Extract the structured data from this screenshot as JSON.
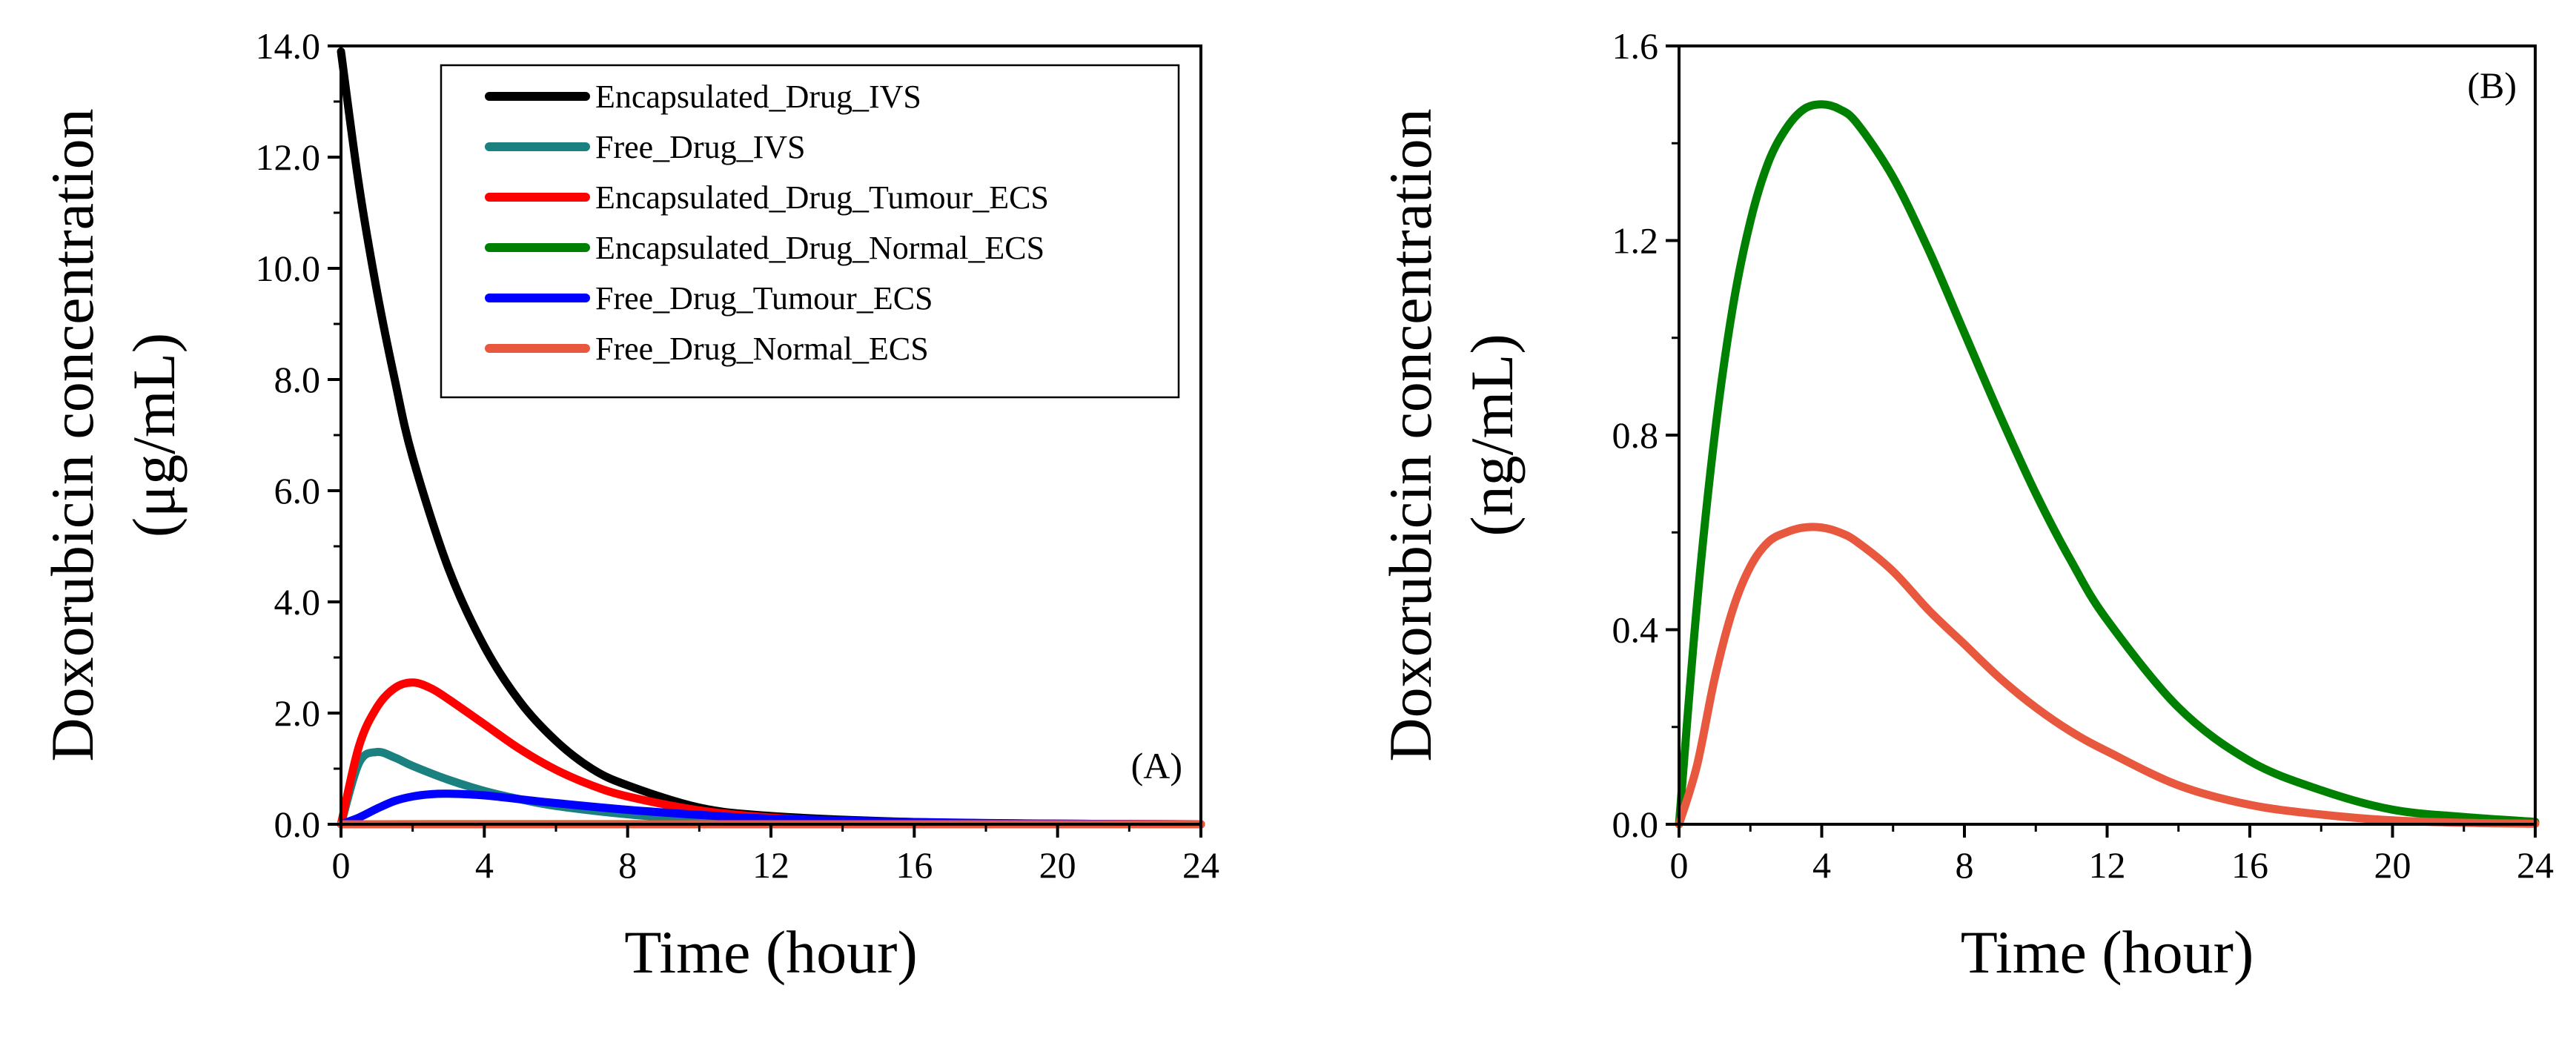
{
  "chart_data": [
    {
      "type": "line",
      "panel_label": "(A)",
      "xlabel": "Time (hour)",
      "ylabel_line1": "Doxorubicin concentration",
      "ylabel_line2": "(μg/mL)",
      "xlim": [
        0,
        24
      ],
      "ylim": [
        0,
        14
      ],
      "xticks": [
        0,
        4,
        8,
        12,
        16,
        20,
        24
      ],
      "yticks": [
        0,
        2,
        4,
        6,
        8,
        10,
        12,
        14
      ],
      "ytick_labels": [
        "0.0",
        "2.0",
        "4.0",
        "6.0",
        "8.0",
        "10.0",
        "12.0",
        "14.0"
      ],
      "legend_position": "top-right",
      "series": [
        {
          "name": "Encapsulated_Drug_IVS",
          "color": "#000000",
          "x": [
            0,
            0.5,
            1,
            1.5,
            2,
            3,
            4,
            5,
            6,
            7,
            8,
            10,
            12,
            16,
            20,
            24
          ],
          "y": [
            13.9,
            11.5,
            9.6,
            8.0,
            6.6,
            4.6,
            3.2,
            2.2,
            1.5,
            1.0,
            0.7,
            0.3,
            0.15,
            0.04,
            0.01,
            0.0
          ]
        },
        {
          "name": "Free_Drug_IVS",
          "color": "#1a8080",
          "x": [
            0,
            0.5,
            1,
            1.5,
            2,
            3,
            4,
            5,
            6,
            8,
            10,
            12,
            16,
            20,
            24
          ],
          "y": [
            0.0,
            1.1,
            1.3,
            1.2,
            1.05,
            0.8,
            0.6,
            0.45,
            0.33,
            0.18,
            0.09,
            0.05,
            0.01,
            0.0,
            0.0
          ]
        },
        {
          "name": "Encapsulated_Drug_Tumour_ECS",
          "color": "#ff0000",
          "x": [
            0,
            0.5,
            1,
            1.5,
            2,
            2.5,
            3,
            4,
            5,
            6,
            7,
            8,
            10,
            12,
            14,
            16,
            20,
            24
          ],
          "y": [
            0.0,
            1.4,
            2.1,
            2.45,
            2.55,
            2.45,
            2.25,
            1.8,
            1.35,
            0.98,
            0.7,
            0.5,
            0.25,
            0.12,
            0.06,
            0.03,
            0.01,
            0.0
          ]
        },
        {
          "name": "Encapsulated_Drug_Normal_ECS",
          "color": "#008000",
          "x": [
            0,
            4,
            8,
            12,
            16,
            20,
            24
          ],
          "y": [
            0,
            0.0015,
            0.0009,
            0.0003,
            0.0001,
            0.0,
            0.0
          ]
        },
        {
          "name": "Free_Drug_Tumour_ECS",
          "color": "#0000ff",
          "x": [
            0,
            0.5,
            1,
            1.5,
            2,
            2.5,
            3,
            4,
            5,
            6,
            8,
            10,
            12,
            16,
            20,
            24
          ],
          "y": [
            0.0,
            0.12,
            0.28,
            0.42,
            0.5,
            0.54,
            0.55,
            0.52,
            0.45,
            0.38,
            0.26,
            0.17,
            0.1,
            0.04,
            0.01,
            0.0
          ]
        },
        {
          "name": "Free_Drug_Normal_ECS",
          "color": "#e8583e",
          "x": [
            0,
            4,
            8,
            12,
            16,
            20,
            24
          ],
          "y": [
            0,
            0.0006,
            0.0003,
            0.0001,
            0.0,
            0.0,
            0.0
          ]
        }
      ]
    },
    {
      "type": "line",
      "panel_label": "(B)",
      "xlabel": "Time (hour)",
      "ylabel_line1": "Doxorubicin concentration",
      "ylabel_line2": "(ng/mL)",
      "xlim": [
        0,
        24
      ],
      "ylim": [
        0,
        1.6
      ],
      "xticks": [
        0,
        4,
        8,
        12,
        16,
        20,
        24
      ],
      "yticks": [
        0,
        0.4,
        0.8,
        1.2,
        1.6
      ],
      "ytick_labels": [
        "0.0",
        "0.4",
        "0.8",
        "1.2",
        "1.6"
      ],
      "series": [
        {
          "name": "Encapsulated_Drug_Normal_ECS",
          "color": "#008000",
          "x": [
            0,
            0.5,
            1,
            1.5,
            2,
            2.5,
            3,
            3.5,
            4,
            4.5,
            5,
            6,
            7,
            8,
            9,
            10,
            11,
            12,
            14,
            16,
            18,
            20,
            22,
            24
          ],
          "y": [
            0.0,
            0.45,
            0.8,
            1.06,
            1.24,
            1.36,
            1.43,
            1.47,
            1.48,
            1.47,
            1.44,
            1.33,
            1.18,
            1.01,
            0.84,
            0.68,
            0.54,
            0.42,
            0.24,
            0.13,
            0.07,
            0.03,
            0.015,
            0.005
          ]
        },
        {
          "name": "Free_Drug_Normal_ECS",
          "color": "#e8583e",
          "x": [
            0,
            0.5,
            1,
            1.5,
            2,
            2.5,
            3,
            3.5,
            4,
            4.5,
            5,
            6,
            7,
            8,
            9,
            10,
            11,
            12,
            14,
            16,
            18,
            20,
            22,
            24
          ],
          "y": [
            0.0,
            0.12,
            0.3,
            0.44,
            0.53,
            0.58,
            0.6,
            0.61,
            0.61,
            0.6,
            0.58,
            0.52,
            0.44,
            0.37,
            0.3,
            0.24,
            0.19,
            0.15,
            0.08,
            0.04,
            0.02,
            0.008,
            0.003,
            0.001
          ]
        }
      ]
    }
  ]
}
